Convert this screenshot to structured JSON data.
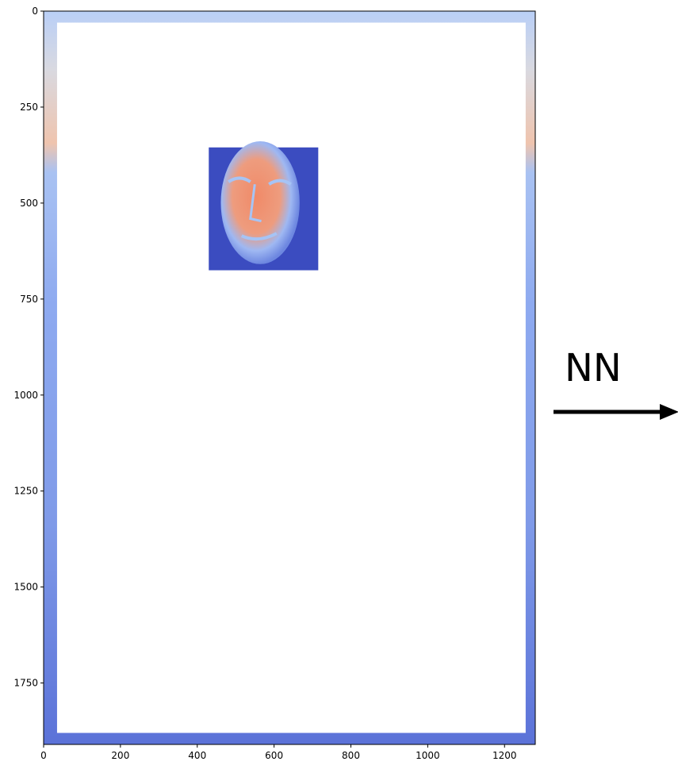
{
  "chart_data": {
    "type": "image",
    "title": "",
    "xlabel": "",
    "ylabel": "",
    "xlim": [
      0,
      1280
    ],
    "ylim": [
      1910,
      0
    ],
    "x_ticks": [
      0,
      200,
      400,
      600,
      800,
      1000,
      1200
    ],
    "y_ticks": [
      0,
      250,
      500,
      750,
      1000,
      1250,
      1500,
      1750
    ],
    "colormap": "coolwarm",
    "colors": {
      "cool": "#3b4cc0",
      "light_blue": "#a6c4f5",
      "neutral": "#dddcdc",
      "warm": "#e8765a"
    },
    "blank_region": {
      "x": [
        35,
        1255
      ],
      "y": [
        30,
        1880
      ]
    },
    "face_patch": {
      "x": [
        430,
        715
      ],
      "y": [
        355,
        675
      ]
    }
  },
  "annotation": {
    "label": "NN",
    "arrow": "right-arrow-icon"
  }
}
